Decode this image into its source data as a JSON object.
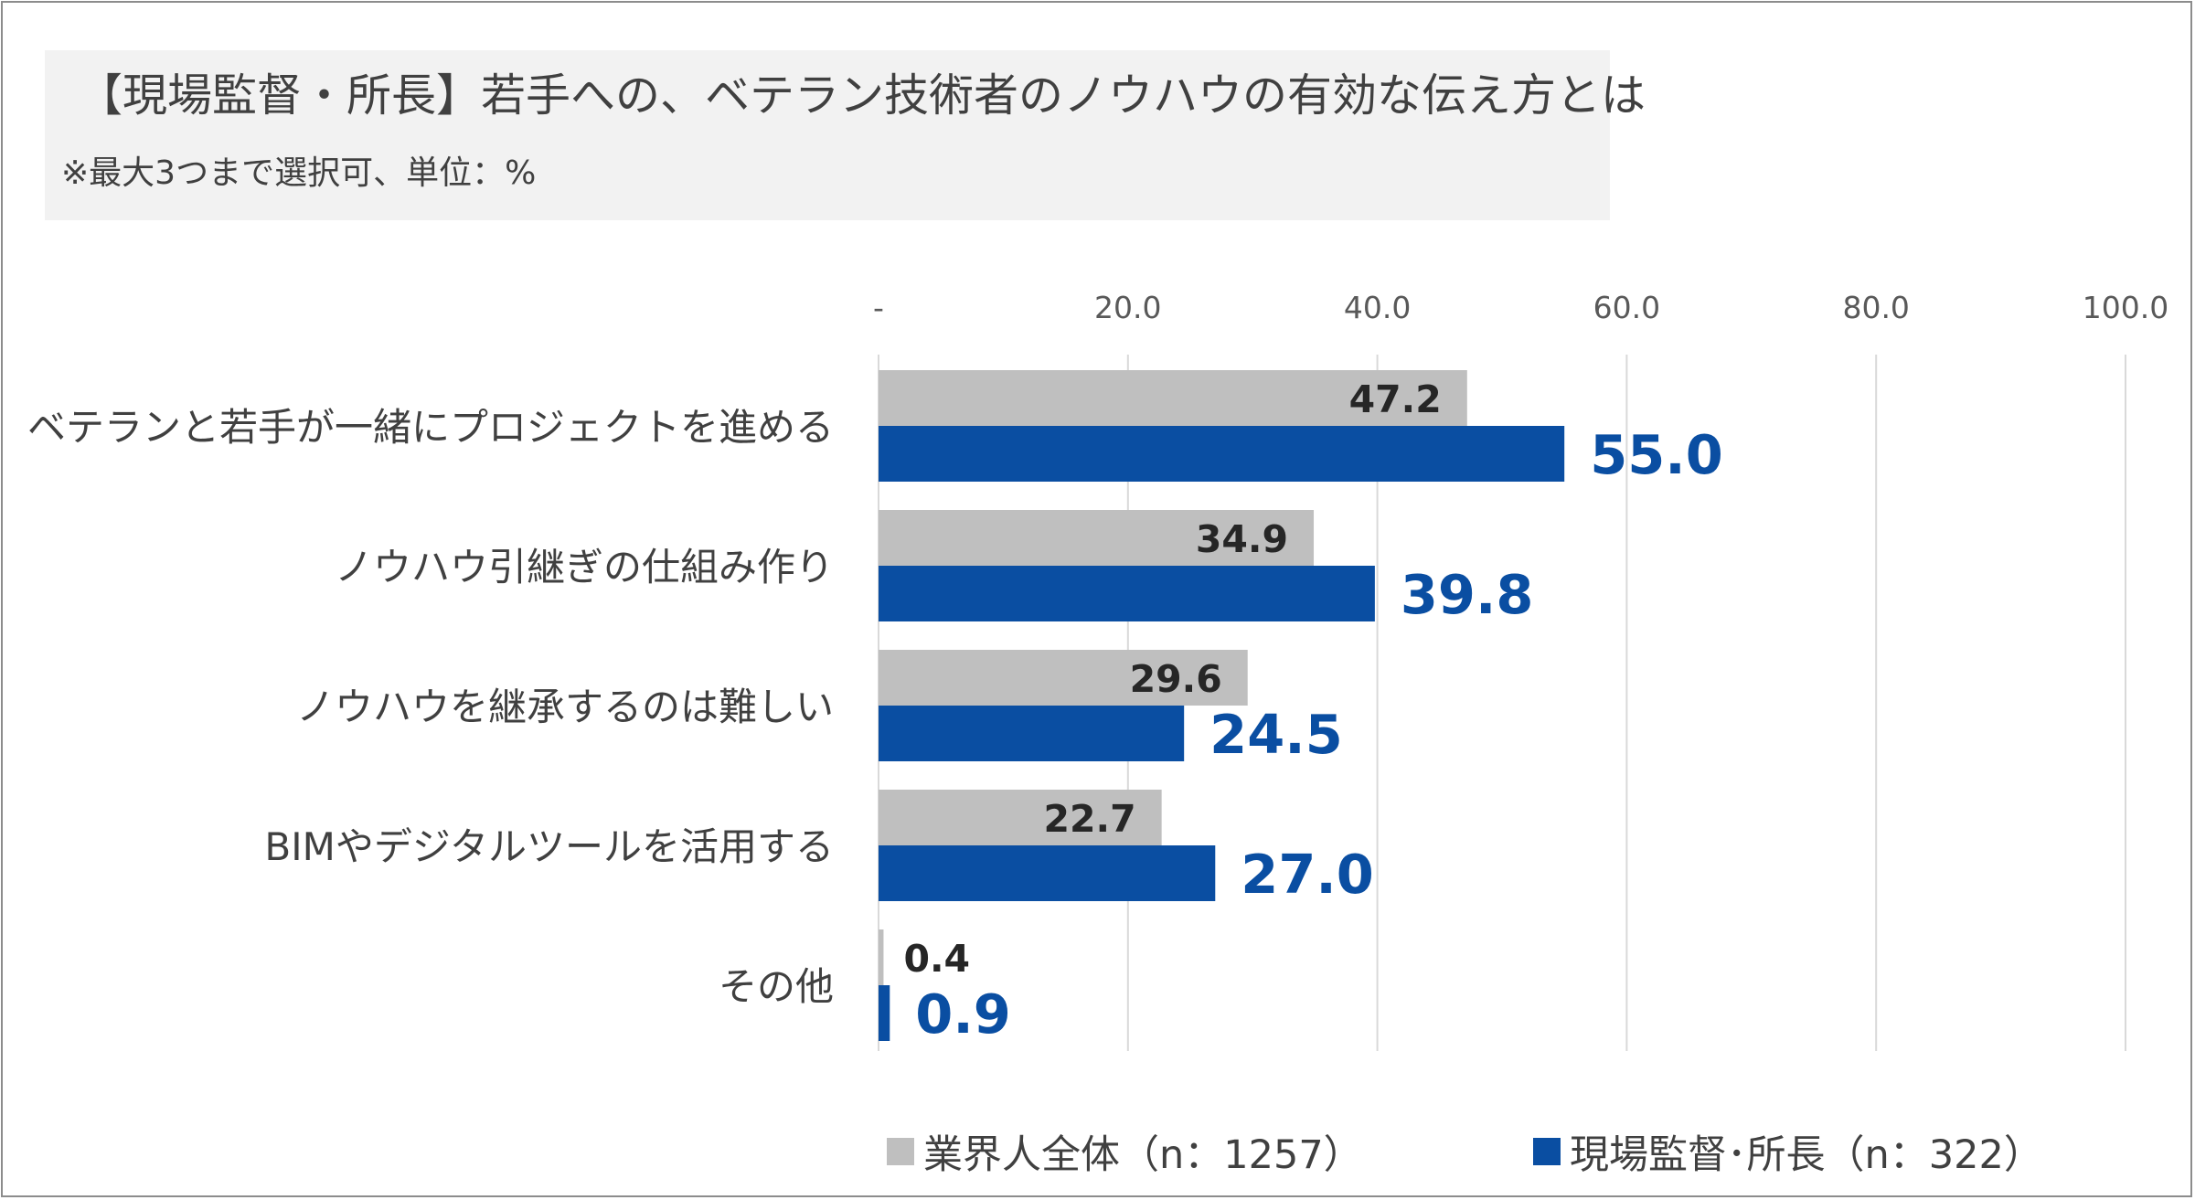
{
  "title": "【現場監督・所長】若手への、ベテラン技術者のノウハウの有効な伝え方とは",
  "subtitle": "※最大3つまで選択可、単位：%",
  "colors": {
    "series1": "#bfbfbf",
    "series2": "#0a4ea2",
    "grid": "#d9d9d9"
  },
  "chart_data": {
    "type": "bar",
    "orientation": "horizontal",
    "categories": [
      "ベテランと若手が一緒にプロジェクトを進める",
      "ノウハウ引継ぎの仕組み作り",
      "ノウハウを継承するのは難しい",
      "BIMやデジタルツールを活用する",
      "その他"
    ],
    "series": [
      {
        "name": "業界人全体（n：1257）",
        "values": [
          47.2,
          34.9,
          29.6,
          22.7,
          0.4
        ],
        "labels": [
          "47.2",
          "34.9",
          "29.6",
          "22.7",
          "0.4"
        ]
      },
      {
        "name": "現場監督･所長（n：322）",
        "values": [
          55.0,
          39.8,
          24.5,
          27.0,
          0.9
        ],
        "labels": [
          "55.0",
          "39.8",
          "24.5",
          "27.0",
          "0.9"
        ]
      }
    ],
    "xlim": [
      0,
      100
    ],
    "xticks": [
      0,
      20,
      40,
      60,
      80,
      100
    ],
    "xtick_labels": [
      "-",
      "20.0",
      "40.0",
      "60.0",
      "80.0",
      "100.0"
    ],
    "grid": true,
    "legend_position": "bottom"
  }
}
